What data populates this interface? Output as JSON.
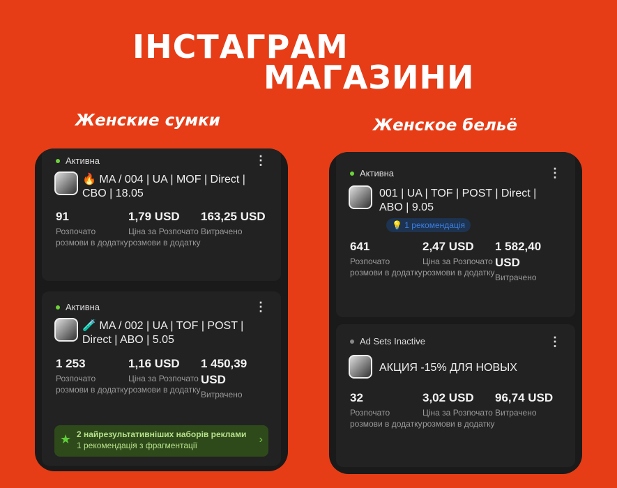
{
  "header": {
    "line1": "ІНСТАГРАМ",
    "line2": "МАГАЗИНИ"
  },
  "left": {
    "subtitle": "Женские сумки",
    "cards": [
      {
        "status": "Активна",
        "emoji": "🔥",
        "title": "MA / 004 | UA | MOF | Direct | CBO | 18.05",
        "stats": [
          {
            "value": "91",
            "label": "Розпочато розмови в додатку"
          },
          {
            "value": "1,79 USD",
            "label": "Ціна за Розпочато розмови в додатку"
          },
          {
            "value": "163,25 USD",
            "label": "Витрачено"
          }
        ]
      },
      {
        "status": "Активна",
        "emoji": "🧪",
        "title": "MA / 002 | UA | TOF | POST | Direct | ABO | 5.05",
        "stats": [
          {
            "value": "1 253",
            "label": "Розпочато розмови в додатку"
          },
          {
            "value": "1,16 USD",
            "label": "Ціна за Розпочато розмови в додатку"
          },
          {
            "value": "1 450,39 USD",
            "label": "Витрачено"
          }
        ]
      }
    ],
    "banner": {
      "title": "2 найрезультативніших наборів реклами",
      "subtitle": "1 рекомендація з фрагментації"
    }
  },
  "right": {
    "subtitle": "Женское бельё",
    "cards": [
      {
        "status": "Активна",
        "title": "001 | UA | TOF | POST | Direct | ABO | 9.05",
        "badge": "1 рекомендація",
        "stats": [
          {
            "value": "641",
            "label": "Розпочато розмови в додатку"
          },
          {
            "value": "2,47 USD",
            "label": "Ціна за Розпочато розмови в додатку"
          },
          {
            "value": "1 582,40 USD",
            "label": "Витрачено"
          }
        ]
      },
      {
        "status": "Ad Sets Inactive",
        "title": "АКЦИЯ -15% ДЛЯ НОВЫХ",
        "stats": [
          {
            "value": "32",
            "label": "Розпочато розмови в додатку"
          },
          {
            "value": "3,02 USD",
            "label": "Ціна за Розпочато розмови в додатку"
          },
          {
            "value": "96,74 USD",
            "label": "Витрачено"
          }
        ]
      }
    ]
  },
  "colors": {
    "background": "#e63d17",
    "panel": "#1a1a1a",
    "active": "#6dd43a",
    "badge": "#3d7fe0"
  }
}
